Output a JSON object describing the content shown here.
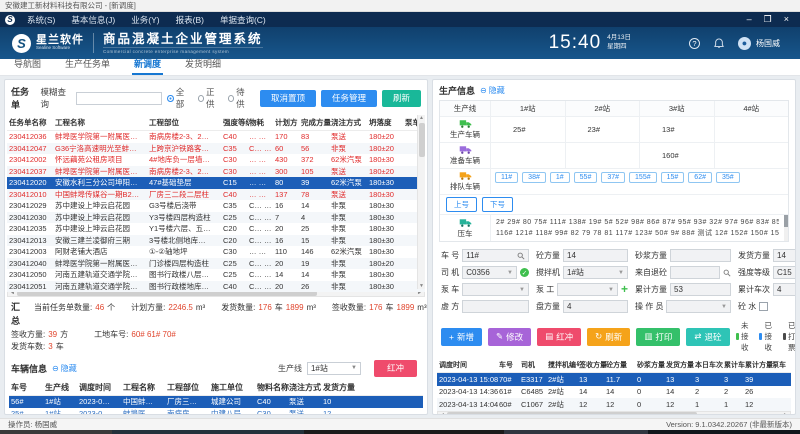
{
  "window": {
    "title": "安徽建工新材料科技有限公司 - [新调度]",
    "minimize": "–",
    "maximize": "❐",
    "close": "×"
  },
  "menubar": {
    "items": [
      "系统(S)",
      "基本信息(J)",
      "业务(Y)",
      "报表(B)",
      "单据查询(C)"
    ]
  },
  "header": {
    "brand": "星兰软件",
    "brand_sub": "Sealine Software",
    "title": "商品混凝土企业管理系统",
    "subtitle": "Commercial concrete enterprise management system",
    "time": "15:40",
    "date": "4月13日",
    "weekday": "星期四",
    "user": "杨国威",
    "help": "?"
  },
  "tabs": {
    "items": [
      "导航图",
      "生产任务单",
      "新调度",
      "发货明细"
    ],
    "active": "新调度"
  },
  "task_panel": {
    "label": "任务单",
    "fuzzy_label": "模糊查询",
    "search_value": "",
    "radios": [
      {
        "label": "全部",
        "on": true
      },
      {
        "label": "正供",
        "on": false
      },
      {
        "label": "待供",
        "on": false
      }
    ],
    "cancel_top": "取消置顶",
    "task_manage": "任务管理",
    "refresh": "刷新",
    "table": {
      "headers": [
        "任务单名称",
        "工程名称",
        "工程部位",
        "强度等级",
        "物耗",
        "计划方",
        "完成方量",
        "浇注方式",
        "坍落度",
        "泵车",
        "施工单位",
        "订单名称"
      ],
      "rows": [
        {
          "status": "red",
          "cells": [
            "230412036",
            "蚌埠医学院第一附属医…",
            "南病房楼2-3、2…",
            "C40",
            "… …",
            "170",
            "83",
            "泵送",
            "180±20",
            "",
            "中建八局",
            "DD-2"
          ]
        },
        {
          "status": "red",
          "cells": [
            "230412047",
            "G36宁洛高速明光至蚌…",
            "上跨京沪铁路客…",
            "C35",
            "C… …",
            "60",
            "56",
            "非泵",
            "180±20",
            "",
            "中铁二…",
            "DD-2"
          ]
        },
        {
          "status": "red",
          "cells": [
            "230412002",
            "怀远藕苑公租房项目",
            "4#地库负一层墙…",
            "C30",
            "… …",
            "430",
            "372",
            "62米汽泵",
            "180±30",
            "",
            "中国二…",
            ""
          ]
        },
        {
          "status": "red",
          "cells": [
            "230412037",
            "蚌埠医学院第一附属医…",
            "南病房楼2-3、2…",
            "C30",
            "… …",
            "300",
            "105",
            "泵送",
            "180±20",
            "",
            "中建八局",
            "DD-2"
          ]
        },
        {
          "status": "selected",
          "cells": [
            "230412020",
            "安徽水利三分公司坤阳…",
            "47#基础垫层",
            "C15",
            "… …",
            "80",
            "39",
            "62米汽泵",
            "180±30",
            "",
            "安徽水…",
            "DD-2"
          ]
        },
        {
          "status": "red",
          "cells": [
            "230412010",
            "中国蚌埠传媒谷一期B2…",
            "厂房三二段二层柱",
            "C40",
            "… …",
            "137",
            "78",
            "泵送",
            "180±30",
            "",
            "城建公司",
            ""
          ]
        },
        {
          "status": "normal",
          "cells": [
            "230412029",
            "苏中建设上坤云启花园",
            "G3号楼后浇带",
            "C35",
            "C… …",
            "16",
            "14",
            "非泵",
            "180±30",
            "",
            "苏中建设",
            "DD-2"
          ]
        },
        {
          "status": "normal",
          "cells": [
            "230412030",
            "苏中建设上坤云启花园",
            "Y3号楼四层构造柱",
            "C25",
            "C… …",
            "7",
            "4",
            "非泵",
            "180±30",
            "",
            "苏中建设",
            "DD-2"
          ]
        },
        {
          "status": "normal",
          "cells": [
            "230412035",
            "苏中建设上坤云启花园",
            "Y1号楼六层、五…",
            "C20",
            "C… …",
            "20",
            "25",
            "非泵",
            "180±30",
            "",
            "苏中建设",
            "DD-2"
          ]
        },
        {
          "status": "normal",
          "cells": [
            "230412013",
            "安徽三建兰凌御府三期",
            "3号楼北侧地库…",
            "C20",
            "C… …",
            "16",
            "15",
            "非泵",
            "180±30",
            "",
            "安徽三建",
            "DD-2"
          ]
        },
        {
          "status": "normal",
          "cells": [
            "230412003",
            "阿财老铺大酒店",
            "①-②轴地坪",
            "C30",
            "… …",
            "110",
            "146",
            "62米汽泵",
            "180±30",
            "",
            "",
            ""
          ]
        },
        {
          "status": "normal",
          "cells": [
            "230412040",
            "蚌埠医学院第一附属医…",
            "门诊楼四层构造柱",
            "C25",
            "C… …",
            "20",
            "19",
            "非泵",
            "180±20",
            "",
            "中建八局",
            "DD-2"
          ]
        },
        {
          "status": "normal",
          "cells": [
            "230412050",
            "河南五建轨道交通学院…",
            "图书行政楼八层…",
            "C25",
            "C… …",
            "14",
            "14",
            "非泵",
            "180±30",
            "",
            "河南五建",
            "DD-2"
          ]
        },
        {
          "status": "normal",
          "cells": [
            "230412051",
            "河南五建轨道交通学院…",
            "图书行政楼地库…",
            "C40",
            "C… …",
            "20",
            "26",
            "非泵",
            "180±30",
            "",
            "河南五建",
            "DD-2"
          ]
        }
      ]
    },
    "summary": {
      "title": "汇总",
      "line1": [
        [
          "当前任务单数量:",
          "46",
          "个"
        ],
        [
          "计划方量:",
          "2246.5",
          "m³"
        ],
        [
          "发货数量:",
          "176",
          "车",
          "1899",
          "m³"
        ],
        [
          "签收数量:",
          "176",
          "车",
          "1899",
          "m³"
        ]
      ],
      "line2": [
        [
          "签收方量:",
          "39",
          "方"
        ],
        [
          "工地车号:",
          "60#  61#  70#",
          ""
        ]
      ],
      "line3": [
        [
          "发货车数:",
          "3",
          "车"
        ]
      ]
    },
    "vehicle_info": {
      "title": "车辆信息",
      "hide_label": "隐藏",
      "line_label": "生产线",
      "line_value": "1#站",
      "red_button": "红冲",
      "headers": [
        "车号",
        "生产线",
        "调度时间",
        "工程名称",
        "工程部位",
        "施工单位",
        "物料名称",
        "浇注方式",
        "发货方量"
      ],
      "rows": [
        {
          "status": "selected",
          "cells": [
            "56#",
            "1#站",
            "2023-0…",
            "中国蚌…",
            "厂房三…",
            "城建公司",
            "C40",
            "泵送",
            "10"
          ]
        },
        {
          "status": "received",
          "cells": [
            "25#",
            "1#站",
            "2023-0…",
            "蚌埠医…",
            "南病房…",
            "中建八局",
            "C30",
            "泵送",
            "12"
          ]
        }
      ]
    }
  },
  "production_panel": {
    "title": "生产信息",
    "hide_label": "隐藏",
    "grid": {
      "corner": "生产线",
      "stations": [
        "1#站",
        "2#站",
        "3#站",
        "4#站"
      ],
      "producing": {
        "label": "生产车辆",
        "values": [
          "25#",
          "23#",
          "13#",
          ""
        ]
      },
      "preparing": {
        "label": "准备车辆",
        "values": [
          "",
          "",
          "160#",
          ""
        ]
      },
      "queue": {
        "label": "排队车辆",
        "chips": [
          "11#",
          "38#",
          "1#",
          "55#",
          "37#",
          "155#",
          "15#",
          "62#",
          "35#"
        ]
      },
      "up": "上号",
      "down": "下号",
      "pressed": {
        "label": "压车",
        "line1": "2#  29#  80  75#  111#  138#  19#  5#  52#  98#  86#  87#  95#  93#  32#  97#  96#  83#  85#  125#",
        "line2": "116#  121#  118#  99#  82  79  78  81  117#  123#  50#  9#  88#  测试  12#  152#  150#  151#  111  73#"
      }
    },
    "form": {
      "vehicle": {
        "label": "车 号",
        "value": "11#"
      },
      "concrete_vol": {
        "label": "砼方量",
        "value": "14"
      },
      "mortar_vol": {
        "label": "砂浆方量",
        "value": ""
      },
      "ship_vol": {
        "label": "发货方量",
        "value": "14"
      },
      "driver": {
        "label": "司 机",
        "value": "C0356"
      },
      "mixer": {
        "label": "搅拌机",
        "value": "1#站"
      },
      "from_return": {
        "label": "来自退砼",
        "value": ""
      },
      "grade": {
        "label": "强度等级",
        "value": "C15"
      },
      "pump": {
        "label": "泵 车",
        "value": ""
      },
      "pump_worker": {
        "label": "泵 工",
        "value": ""
      },
      "total_vol": {
        "label": "累计方量",
        "value": "53"
      },
      "total_trips": {
        "label": "累计车次",
        "value": "4"
      },
      "virtual_vol": {
        "label": "虚 方",
        "value": ""
      },
      "batch_vol": {
        "label": "盘方量",
        "value": "4"
      },
      "operator": {
        "label": "操 作 员",
        "value": ""
      },
      "water": {
        "label": "砼 水"
      }
    },
    "actions": {
      "add": "新增",
      "edit": "修改",
      "redflush": "红冲",
      "refresh": "刷新",
      "print": "打印",
      "return": "退砼"
    },
    "legend": [
      {
        "label": "未接收",
        "color": "#3fbf4e"
      },
      {
        "label": "已接收",
        "color": "#2d8cf0"
      },
      {
        "label": "已打票",
        "color": "#4a4a4a"
      }
    ],
    "dispatch_table": {
      "headers": [
        "调度时间",
        "车号",
        "司机",
        "搅拌机编号",
        "签收方量",
        "砼方量",
        "砂浆方量",
        "发货方量",
        "本日车次",
        "累计车次",
        "累计方量",
        "泵车"
      ],
      "rows": [
        {
          "status": "selected",
          "cells": [
            "2023-04-13 15:08",
            "70#",
            "E3317",
            "2#站",
            "13",
            "11.7",
            "0",
            "13",
            "3",
            "3",
            "39",
            ""
          ]
        },
        {
          "status": "normal",
          "cells": [
            "2023-04-13 14:36",
            "61#",
            "C6485",
            "2#站",
            "14",
            "14",
            "0",
            "14",
            "2",
            "2",
            "26",
            ""
          ]
        },
        {
          "status": "normal",
          "cells": [
            "2023-04-13 14:04",
            "60#",
            "C1067",
            "2#站",
            "12",
            "12",
            "0",
            "12",
            "1",
            "1",
            "12",
            ""
          ]
        }
      ]
    }
  },
  "statusbar": {
    "operator": "操作员: 杨国威",
    "version": "Version: 9.1.0342.20267 (非最新版本)"
  }
}
